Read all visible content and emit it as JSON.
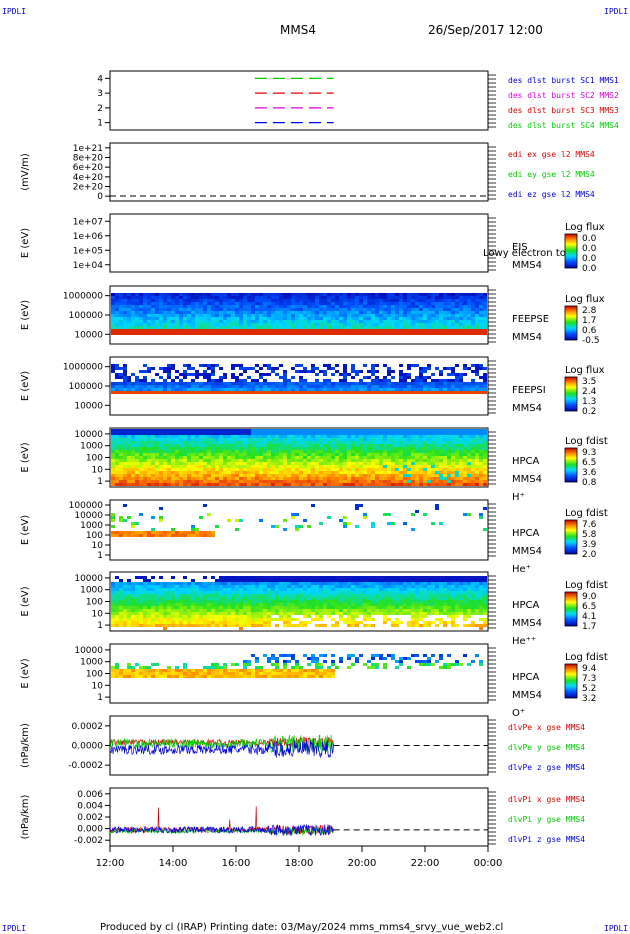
{
  "corner_label": "IPDLI",
  "header": {
    "spacecraft": "MMS4",
    "datetime": "26/Sep/2017 12:00"
  },
  "footer": "Produced by cl (IRAP)   Printing date: 03/May/2024   mms_mms4_srvy_vue_web2.cl",
  "colors": {
    "red": "#e00000",
    "green": "#00cc00",
    "blue": "#0000ee",
    "magenta": "#e000e0",
    "black": "#000000"
  },
  "time_axis": {
    "range_hours": [
      12,
      24
    ],
    "tick_labels": [
      "12:00",
      "14:00",
      "16:00",
      "18:00",
      "20:00",
      "22:00",
      "00:00"
    ]
  },
  "chart_data": [
    {
      "type": "line",
      "panel": "burst",
      "ylim": [
        0.5,
        4.5
      ],
      "yticks": [
        "1",
        "2",
        "3",
        "4"
      ],
      "series": [
        {
          "name": "des dlst burst SC1 MMS1",
          "color": "#0000ee",
          "y": 1,
          "x_range": [
            16.6,
            19.1
          ]
        },
        {
          "name": "des dlst burst SC2 MMS2",
          "color": "#e000e0",
          "y": 2,
          "x_range": [
            16.6,
            19.1
          ]
        },
        {
          "name": "des dlst burst SC3 MMS3",
          "color": "#e00000",
          "y": 3,
          "x_range": [
            16.6,
            19.1
          ]
        },
        {
          "name": "des dlst burst SC4 MMS4",
          "color": "#00cc00",
          "y": 4,
          "x_range": [
            16.6,
            19.1
          ]
        }
      ]
    },
    {
      "type": "line",
      "panel": "edi",
      "ylabel": "(mV/m)",
      "ylim": [
        -1e+20,
        1.05e+21
      ],
      "yticks": [
        "0",
        "2e+20",
        "4e+20",
        "6e+20",
        "8e+20",
        "1e+21"
      ],
      "series": [
        {
          "name": "edi ex gse l2 MMS4",
          "color": "#e00000"
        },
        {
          "name": "edi ey gse l2 MMS4",
          "color": "#00cc00"
        },
        {
          "name": "edi ez gse l2 MMS4",
          "color": "#0000ee"
        }
      ]
    },
    {
      "type": "heatmap",
      "panel": "eis",
      "ylabel": "E (eV)",
      "yscale": "log",
      "yticks": [
        "1e+04",
        "1e+05",
        "1e+06",
        "1e+07"
      ],
      "instrument": [
        "EIS",
        "MMS4"
      ],
      "overlay_text": "Lowy electron to",
      "colorbar": {
        "title": "Log flux",
        "ticks": [
          "0.0",
          "0.0",
          "0.0",
          "0.0"
        ]
      }
    },
    {
      "type": "heatmap",
      "panel": "feepse",
      "ylabel": "E (eV)",
      "yscale": "log",
      "yticks": [
        "10000",
        "100000",
        "1000000"
      ],
      "instrument": [
        "FEEPSE",
        "MMS4"
      ],
      "colorbar": {
        "title": "Log flux",
        "ticks": [
          "2.8",
          "1.7",
          "0.6",
          "-0.5"
        ]
      }
    },
    {
      "type": "heatmap",
      "panel": "feepsi",
      "ylabel": "E (eV)",
      "yscale": "log",
      "yticks": [
        "10000",
        "100000",
        "1000000"
      ],
      "instrument": [
        "FEEPSI",
        "MMS4"
      ],
      "colorbar": {
        "title": "Log flux",
        "ticks": [
          "3.5",
          "2.4",
          "1.3",
          "0.2"
        ]
      }
    },
    {
      "type": "heatmap",
      "panel": "hpca_h",
      "ylabel": "E (eV)",
      "yscale": "log",
      "yticks": [
        "1",
        "10",
        "100",
        "1000",
        "10000"
      ],
      "instrument": [
        "HPCA",
        "MMS4",
        "H⁺"
      ],
      "colorbar": {
        "title": "Log fdist",
        "ticks": [
          "9.3",
          "6.5",
          "3.6",
          "0.8"
        ]
      }
    },
    {
      "type": "heatmap",
      "panel": "hpca_he",
      "ylabel": "E (eV)",
      "yscale": "log",
      "yticks": [
        "1",
        "10",
        "100",
        "1000",
        "10000",
        "100000"
      ],
      "instrument": [
        "HPCA",
        "MMS4",
        "He⁺"
      ],
      "colorbar": {
        "title": "Log fdist",
        "ticks": [
          "7.6",
          "5.8",
          "3.9",
          "2.0"
        ]
      }
    },
    {
      "type": "heatmap",
      "panel": "hpca_hepp",
      "ylabel": "E (eV)",
      "yscale": "log",
      "yticks": [
        "1",
        "10",
        "100",
        "1000",
        "10000"
      ],
      "instrument": [
        "HPCA",
        "MMS4",
        "He⁺⁺"
      ],
      "colorbar": {
        "title": "Log fdist",
        "ticks": [
          "9.0",
          "6.5",
          "4.1",
          "1.7"
        ]
      }
    },
    {
      "type": "heatmap",
      "panel": "hpca_o",
      "ylabel": "E (eV)",
      "yscale": "log",
      "yticks": [
        "1",
        "10",
        "100",
        "1000",
        "10000"
      ],
      "instrument": [
        "HPCA",
        "MMS4",
        "O⁺"
      ],
      "colorbar": {
        "title": "Log fdist",
        "ticks": [
          "9.4",
          "7.3",
          "5.2",
          "3.2"
        ]
      }
    },
    {
      "type": "line",
      "panel": "dpe",
      "ylabel": "(nPa/km)",
      "ylim": [
        -0.0003,
        0.0003
      ],
      "yticks": [
        "-0.0002",
        "0.0000",
        "0.0002"
      ],
      "data_x_range": [
        12.0,
        19.1
      ],
      "series": [
        {
          "name": "dlvPe x gse MMS4",
          "color": "#e00000"
        },
        {
          "name": "dlvPe y gse MMS4",
          "color": "#00cc00"
        },
        {
          "name": "dlvPe z gse MMS4",
          "color": "#0000ee"
        }
      ]
    },
    {
      "type": "line",
      "panel": "dpi",
      "ylabel": "(nPa/km)",
      "ylim": [
        -0.0025,
        0.0065
      ],
      "yticks": [
        "-0.002",
        "0.000",
        "0.002",
        "0.004",
        "0.006"
      ],
      "data_x_range": [
        12.0,
        19.1
      ],
      "series": [
        {
          "name": "dlvPi x gse MMS4",
          "color": "#e00000"
        },
        {
          "name": "dlvPi y gse MMS4",
          "color": "#00cc00"
        },
        {
          "name": "dlvPi z gse MMS4",
          "color": "#0000ee"
        }
      ]
    }
  ]
}
